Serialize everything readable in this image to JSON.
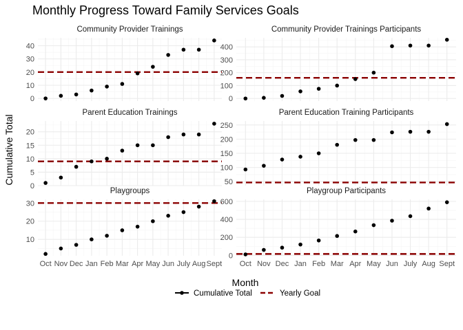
{
  "title": "Monthly Progress Toward Family Services Goals",
  "xlabel": "Month",
  "ylabel": "Cumulative Total",
  "legend": {
    "placement": "bottom",
    "entries": [
      {
        "label": "Cumulative Total",
        "kind": "line-point",
        "color": "#000000"
      },
      {
        "label": "Yearly Goal",
        "kind": "dashed-line",
        "color": "#8b0000"
      }
    ]
  },
  "colors": {
    "points": "#000000",
    "goal": "#8b0000",
    "grid_major": "#ebebeb",
    "grid_minor": "#f5f5f5"
  },
  "chart_data": [
    {
      "type": "scatter",
      "title": "Community Provider Trainings",
      "categories": [
        "Oct",
        "Nov",
        "Dec",
        "Jan",
        "Feb",
        "Mar",
        "Apr",
        "May",
        "Jun",
        "July",
        "Aug",
        "Sept"
      ],
      "values": [
        0,
        2,
        3,
        6,
        9,
        11,
        19,
        24,
        33,
        37,
        37,
        44
      ],
      "goal": 20,
      "ylim": [
        -2,
        46
      ],
      "yticks": [
        0,
        10,
        20,
        30,
        40
      ]
    },
    {
      "type": "scatter",
      "title": "Community Provider Trainings Participants",
      "categories": [
        "Oct",
        "Nov",
        "Dec",
        "Jan",
        "Feb",
        "Mar",
        "Apr",
        "May",
        "Jun",
        "July",
        "Aug",
        "Sept"
      ],
      "values": [
        0,
        5,
        20,
        55,
        75,
        100,
        150,
        200,
        405,
        410,
        410,
        455
      ],
      "goal": 160,
      "ylim": [
        -20,
        470
      ],
      "yticks": [
        0,
        100,
        200,
        300,
        400
      ]
    },
    {
      "type": "scatter",
      "title": "Parent Education Trainings",
      "categories": [
        "Oct",
        "Nov",
        "Dec",
        "Jan",
        "Feb",
        "Mar",
        "Apr",
        "May",
        "Jun",
        "July",
        "Aug",
        "Sept"
      ],
      "values": [
        1,
        3,
        7,
        9,
        10,
        13,
        15,
        15,
        18,
        19,
        19,
        23
      ],
      "goal": 9,
      "ylim": [
        0,
        24
      ],
      "yticks": [
        0,
        5,
        10,
        15,
        20
      ]
    },
    {
      "type": "scatter",
      "title": "Parent Education Training Participants",
      "categories": [
        "Oct",
        "Nov",
        "Dec",
        "Jan",
        "Feb",
        "Mar",
        "Apr",
        "May",
        "Jun",
        "July",
        "Aug",
        "Sept"
      ],
      "values": [
        93,
        106,
        128,
        138,
        150,
        180,
        197,
        197,
        224,
        226,
        226,
        253
      ],
      "goal": 47,
      "ylim": [
        36,
        264
      ],
      "yticks": [
        50,
        100,
        150,
        200,
        250
      ]
    },
    {
      "type": "scatter",
      "title": "Playgroups",
      "categories": [
        "Oct",
        "Nov",
        "Dec",
        "Jan",
        "Feb",
        "Mar",
        "Apr",
        "May",
        "Jun",
        "July",
        "Aug",
        "Sept"
      ],
      "values": [
        2,
        5,
        7,
        10,
        12,
        15,
        17,
        20,
        23,
        25,
        28,
        31
      ],
      "goal": 30,
      "ylim": [
        1,
        32
      ],
      "yticks": [
        10,
        20,
        30
      ]
    },
    {
      "type": "scatter",
      "title": "Playgroup Participants",
      "categories": [
        "Oct",
        "Nov",
        "Dec",
        "Jan",
        "Feb",
        "Mar",
        "Apr",
        "May",
        "Jun",
        "July",
        "Aug",
        "Sept"
      ],
      "values": [
        10,
        60,
        85,
        120,
        165,
        215,
        265,
        335,
        385,
        435,
        520,
        590
      ],
      "goal": 15,
      "ylim": [
        -5,
        622
      ],
      "yticks": [
        0,
        200,
        400,
        600
      ]
    }
  ]
}
